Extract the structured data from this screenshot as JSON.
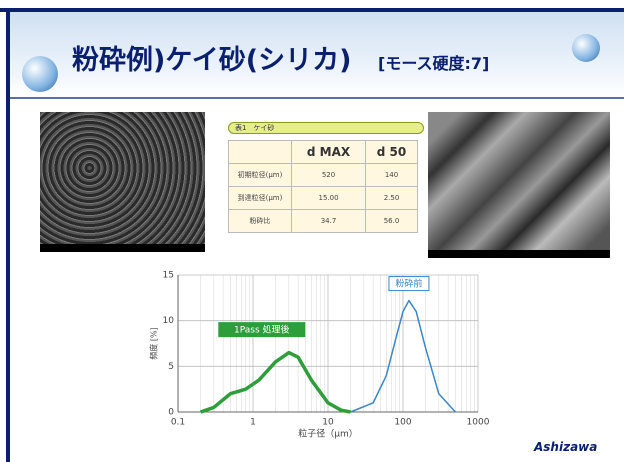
{
  "header": {
    "title": "粉砕例)ケイ砂(シリカ)",
    "subtitle": "[モース硬度:7]"
  },
  "table": {
    "caption": "表1　ケイ砂",
    "columns": [
      "d MAX",
      "d 50"
    ],
    "rows": [
      [
        "初期粒径(μm)",
        "520",
        "140"
      ],
      [
        "到達粒径(μm)",
        "15.00",
        "2.50"
      ],
      [
        "粉砕比",
        "34.7",
        "56.0"
      ]
    ]
  },
  "chart_data": {
    "type": "line",
    "xlabel": "粒子径（μm）",
    "ylabel": "頻度 [%]",
    "log_x": true,
    "xlim": [
      0.1,
      1000
    ],
    "xticks": [
      0.1,
      1,
      10,
      100,
      1000
    ],
    "ylim": [
      0,
      15
    ],
    "yticks": [
      0,
      5,
      10,
      15
    ],
    "grid": true,
    "series": [
      {
        "name": "1Pass 処理後",
        "color": "#2e9e3a",
        "x": [
          0.2,
          0.3,
          0.5,
          0.8,
          1.2,
          2,
          3,
          4,
          6,
          10,
          15,
          20
        ],
        "values": [
          0,
          0.5,
          2,
          2.5,
          3.5,
          5.5,
          6.5,
          6,
          3.5,
          1,
          0.2,
          0
        ]
      },
      {
        "name": "粉砕前",
        "color": "#3a86c8",
        "x": [
          20,
          40,
          60,
          80,
          100,
          120,
          150,
          200,
          300,
          500
        ],
        "values": [
          0,
          1,
          4,
          8,
          11,
          12.2,
          11,
          7,
          2,
          0
        ]
      }
    ]
  },
  "footer": {
    "logo": "Ashizawa"
  }
}
